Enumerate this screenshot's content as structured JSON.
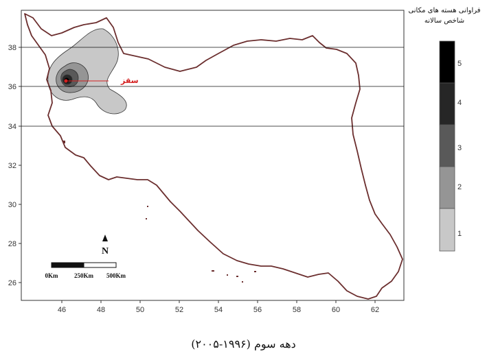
{
  "map": {
    "x_ticks": [
      "46",
      "48",
      "50",
      "52",
      "54",
      "56",
      "58",
      "60",
      "62"
    ],
    "y_ticks": [
      "38",
      "36",
      "34",
      "32",
      "30",
      "28",
      "26"
    ],
    "reference_lines_lat": [
      38,
      36,
      34
    ],
    "city_label": "سقز",
    "north_label": "N",
    "scale_bar": {
      "labels": [
        "0Km",
        "250Km",
        "500Km"
      ]
    },
    "region_colors": {
      "border": "#6b2e2e",
      "level1": "#c8c8c8",
      "level2": "#959595",
      "level3": "#595959",
      "level4": "#262626",
      "level5": "#000000",
      "city_line": "#d42020"
    }
  },
  "legend": {
    "title_line1": "فراوانی هسته های مکانی",
    "title_line2": "شاخص سالانه",
    "classes": [
      "5",
      "4",
      "3",
      "2",
      "1"
    ],
    "colors": [
      "#000000",
      "#262626",
      "#595959",
      "#959595",
      "#c8c8c8"
    ]
  },
  "caption": "دهه سوم (۱۹۹۶-۲۰۰۵)"
}
